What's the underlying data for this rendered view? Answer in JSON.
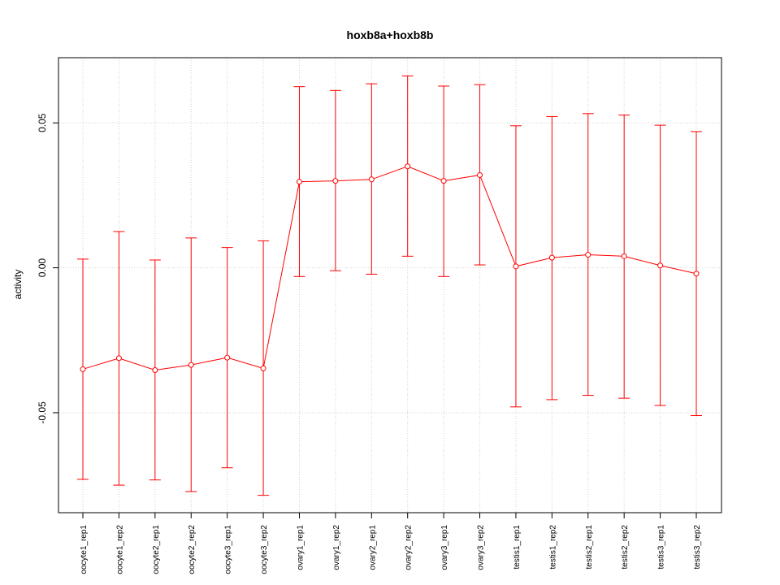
{
  "chart_data": {
    "type": "line",
    "title": "hoxb8a+hoxb8b",
    "xlabel": "",
    "ylabel": "activity",
    "ylim": [
      -0.0845,
      0.0725
    ],
    "yticks": [
      -0.05,
      0.0,
      0.05
    ],
    "ytick_labels": [
      "-0.05",
      "0.00",
      "0.05"
    ],
    "grid": true,
    "categories": [
      "oocyte1_rep1",
      "oocyte1_rep2",
      "oocyte2_rep1",
      "oocyte2_rep2",
      "oocyte3_rep1",
      "oocyte3_rep2",
      "ovary1_rep1",
      "ovary1_rep2",
      "ovary2_rep1",
      "ovary2_rep2",
      "ovary3_rep1",
      "ovary3_rep2",
      "testis1_rep1",
      "testis1_rep2",
      "testis2_rep1",
      "testis2_rep2",
      "testis3_rep1",
      "testis3_rep2"
    ],
    "series": [
      {
        "color": "#ff0000",
        "values": [
          -0.035,
          -0.0312,
          -0.0353,
          -0.0335,
          -0.031,
          -0.0347,
          0.0297,
          0.03,
          0.0305,
          0.035,
          0.03,
          0.032,
          0.0005,
          0.0035,
          0.0045,
          0.004,
          0.0008,
          -0.002
        ],
        "upper": [
          0.003,
          0.0125,
          0.0027,
          0.0103,
          0.007,
          0.0093,
          0.0625,
          0.0612,
          0.0635,
          0.0662,
          0.0627,
          0.0632,
          0.049,
          0.0522,
          0.0532,
          0.0527,
          0.0492,
          0.047
        ],
        "lower": [
          -0.073,
          -0.075,
          -0.0732,
          -0.0772,
          -0.069,
          -0.0785,
          -0.003,
          -0.001,
          -0.0022,
          0.004,
          -0.003,
          0.001,
          -0.048,
          -0.0455,
          -0.044,
          -0.045,
          -0.0475,
          -0.051
        ]
      }
    ]
  }
}
